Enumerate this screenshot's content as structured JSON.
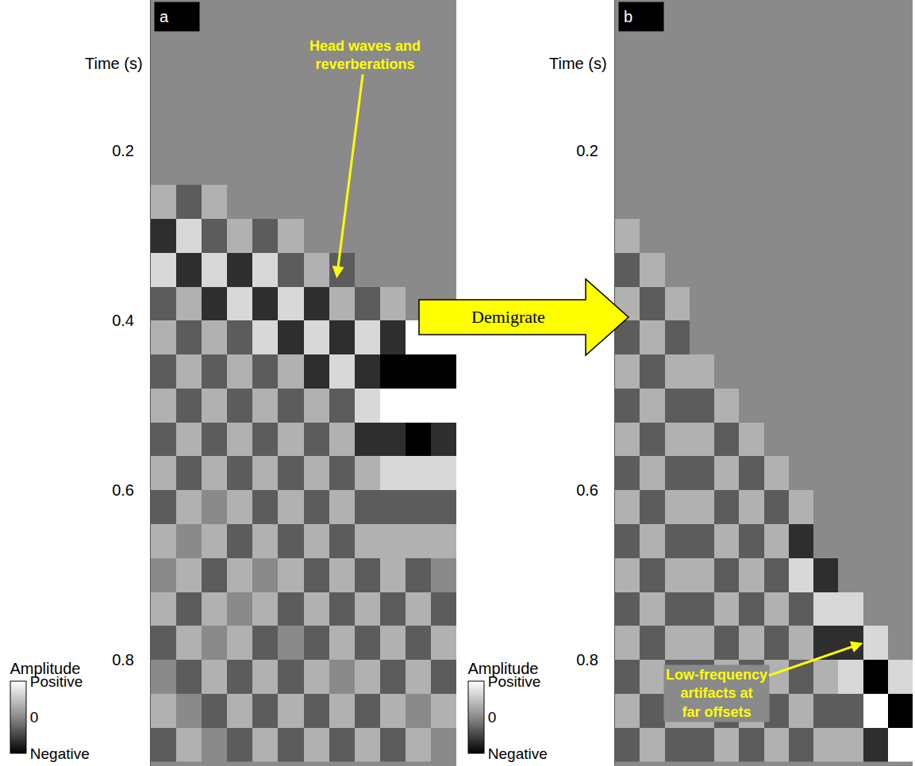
{
  "chart_data": [
    {
      "type": "heatmap",
      "panel": "a",
      "y_label": "Time (s)",
      "y": [
        0.02,
        0.06,
        0.1,
        0.14,
        0.18,
        0.22,
        0.26,
        0.3,
        0.34,
        0.38,
        0.42,
        0.46,
        0.5,
        0.54,
        0.58,
        0.62,
        0.66,
        0.7,
        0.74,
        0.78,
        0.82,
        0.86,
        0.9
      ],
      "z": [
        [
          0,
          0,
          0,
          0,
          0,
          0,
          0,
          0,
          0,
          0,
          0,
          0
        ],
        [
          0,
          0,
          0,
          0,
          0,
          0,
          0,
          0,
          0,
          0,
          0,
          0
        ],
        [
          0,
          0,
          0,
          0,
          0,
          0,
          0,
          0,
          0,
          0,
          0,
          0
        ],
        [
          0,
          0,
          0,
          0,
          0,
          0,
          0,
          0,
          0,
          0,
          0,
          0
        ],
        [
          0,
          0,
          0,
          0,
          0,
          0,
          0,
          0,
          0,
          0,
          0,
          0
        ],
        [
          0,
          0,
          0,
          0,
          0,
          0,
          0,
          0,
          0,
          0,
          0,
          0
        ],
        [
          1,
          -1,
          1,
          0,
          0,
          0,
          0,
          0,
          0,
          0,
          0,
          0
        ],
        [
          -2,
          2,
          -1,
          1,
          -1,
          1,
          0,
          0,
          0,
          0,
          0,
          0
        ],
        [
          2,
          -2,
          2,
          -2,
          2,
          -1,
          1,
          -1,
          0,
          0,
          0,
          0
        ],
        [
          -1,
          1,
          -2,
          2,
          -2,
          2,
          -2,
          1,
          -1,
          1,
          0,
          0
        ],
        [
          1,
          -1,
          1,
          -1,
          2,
          -2,
          2,
          -2,
          2,
          -2,
          3,
          3
        ],
        [
          -1,
          1,
          -1,
          1,
          -1,
          1,
          -2,
          2,
          -2,
          -3,
          -3,
          -3
        ],
        [
          1,
          -1,
          1,
          -1,
          1,
          -1,
          1,
          -1,
          2,
          3,
          3,
          3
        ],
        [
          -1,
          1,
          -1,
          1,
          -1,
          1,
          -1,
          1,
          -2,
          -2,
          -3,
          -2
        ],
        [
          1,
          -1,
          1,
          -1,
          1,
          -1,
          1,
          -1,
          1,
          2,
          2,
          2
        ],
        [
          -1,
          1,
          0,
          1,
          -1,
          1,
          -1,
          1,
          -1,
          -1,
          -1,
          -1
        ],
        [
          1,
          0,
          1,
          -1,
          1,
          -1,
          1,
          -1,
          1,
          1,
          1,
          1
        ],
        [
          0,
          1,
          -1,
          1,
          0,
          1,
          -1,
          1,
          -1,
          1,
          -1,
          0
        ],
        [
          1,
          -1,
          1,
          0,
          1,
          -1,
          1,
          -1,
          1,
          -1,
          1,
          -1
        ],
        [
          -1,
          1,
          0,
          1,
          -1,
          0,
          -1,
          1,
          -1,
          1,
          -1,
          1
        ],
        [
          0,
          -1,
          1,
          -1,
          1,
          -1,
          1,
          0,
          1,
          -1,
          1,
          -1
        ],
        [
          1,
          0,
          -1,
          1,
          -1,
          1,
          -1,
          1,
          -1,
          1,
          0,
          1
        ],
        [
          -1,
          1,
          0,
          -1,
          1,
          -1,
          1,
          -1,
          1,
          -1,
          1,
          0
        ]
      ],
      "ylim": [
        0.022,
        0.925
      ],
      "yticks": [
        0.2,
        0.4,
        0.6,
        0.8
      ],
      "grid": false,
      "tick_labels": "y",
      "colorbar": {
        "title": "Amplitude",
        "zlim": [
          -3,
          3
        ],
        "ticks": [
          {
            "value": 3,
            "label": "Positive"
          },
          0,
          {
            "value": -3,
            "label": "Negative"
          }
        ]
      },
      "annotations": [
        {
          "text": "Head waves and reverberations",
          "x": 6.8,
          "y": 0.35
        }
      ]
    },
    {
      "type": "heatmap",
      "panel": "b",
      "y_label": "Time (s)",
      "y": [
        0.02,
        0.06,
        0.1,
        0.14,
        0.18,
        0.22,
        0.26,
        0.3,
        0.34,
        0.38,
        0.42,
        0.46,
        0.5,
        0.54,
        0.58,
        0.62,
        0.66,
        0.7,
        0.74,
        0.78,
        0.82,
        0.86,
        0.9
      ],
      "z": [
        [
          0,
          0,
          0,
          0,
          0,
          0,
          0,
          0,
          0,
          0,
          0,
          0
        ],
        [
          0,
          0,
          0,
          0,
          0,
          0,
          0,
          0,
          0,
          0,
          0,
          0
        ],
        [
          0,
          0,
          0,
          0,
          0,
          0,
          0,
          0,
          0,
          0,
          0,
          0
        ],
        [
          0,
          0,
          0,
          0,
          0,
          0,
          0,
          0,
          0,
          0,
          0,
          0
        ],
        [
          0,
          0,
          0,
          0,
          0,
          0,
          0,
          0,
          0,
          0,
          0,
          0
        ],
        [
          0,
          0,
          0,
          0,
          0,
          0,
          0,
          0,
          0,
          0,
          0,
          0
        ],
        [
          0,
          0,
          0,
          0,
          0,
          0,
          0,
          0,
          0,
          0,
          0,
          0
        ],
        [
          1,
          0,
          0,
          0,
          0,
          0,
          0,
          0,
          0,
          0,
          0,
          0
        ],
        [
          -1,
          1,
          0,
          0,
          0,
          0,
          0,
          0,
          0,
          0,
          0,
          0
        ],
        [
          1,
          -1,
          1,
          0,
          0,
          0,
          0,
          0,
          0,
          0,
          0,
          0
        ],
        [
          -1,
          1,
          -1,
          0,
          0,
          0,
          0,
          0,
          0,
          0,
          0,
          0
        ],
        [
          1,
          -1,
          1,
          1,
          0,
          0,
          0,
          0,
          0,
          0,
          0,
          0
        ],
        [
          -1,
          1,
          -1,
          -1,
          1,
          0,
          0,
          0,
          0,
          0,
          0,
          0
        ],
        [
          1,
          -1,
          1,
          1,
          -1,
          1,
          0,
          0,
          0,
          0,
          0,
          0
        ],
        [
          -1,
          1,
          -1,
          -1,
          1,
          -1,
          1,
          0,
          0,
          0,
          0,
          0
        ],
        [
          1,
          -1,
          1,
          1,
          -1,
          1,
          -1,
          1,
          0,
          0,
          0,
          0
        ],
        [
          -1,
          1,
          -1,
          -1,
          1,
          -1,
          1,
          -2,
          0,
          0,
          0,
          0
        ],
        [
          1,
          -1,
          1,
          1,
          -1,
          1,
          -1,
          2,
          -2,
          0,
          0,
          0
        ],
        [
          -1,
          1,
          -1,
          -1,
          1,
          -1,
          1,
          -1,
          2,
          2,
          0,
          0
        ],
        [
          1,
          -1,
          1,
          1,
          -1,
          1,
          -1,
          1,
          -2,
          -2,
          2,
          0
        ],
        [
          -1,
          1,
          -1,
          -1,
          1,
          -1,
          1,
          -1,
          1,
          2,
          -3,
          2
        ],
        [
          1,
          -1,
          1,
          1,
          -1,
          1,
          -1,
          1,
          -1,
          -1,
          3,
          -3
        ],
        [
          -1,
          1,
          -1,
          -1,
          1,
          -1,
          1,
          -1,
          1,
          1,
          -2,
          3
        ]
      ],
      "ylim": [
        0.022,
        0.925
      ],
      "yticks": [
        0.2,
        0.4,
        0.6,
        0.8
      ],
      "grid": false,
      "tick_labels": "y",
      "colorbar": {
        "title": "Amplitude",
        "zlim": [
          -3,
          3
        ],
        "ticks": [
          {
            "value": 3,
            "label": "Positive"
          },
          0,
          {
            "value": -3,
            "label": "Negative"
          }
        ]
      },
      "annotations": [
        {
          "text": "Low-frequency artifacts at far offsets",
          "x": 9.5,
          "y": 0.78
        }
      ]
    }
  ],
  "arrow": {
    "label": "Demigrate"
  }
}
